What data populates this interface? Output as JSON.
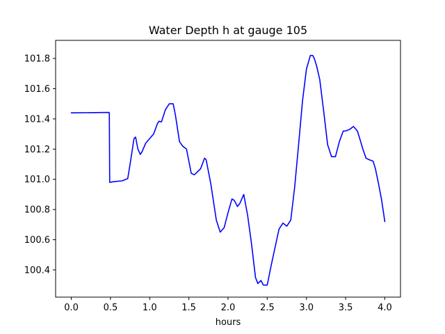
{
  "chart_data": {
    "type": "line",
    "title": "Water Depth h at gauge 105",
    "xlabel": "hours",
    "ylabel": "",
    "xlim": [
      -0.2,
      4.2
    ],
    "ylim": [
      100.22,
      101.92
    ],
    "xticks": [
      0.0,
      0.5,
      1.0,
      1.5,
      2.0,
      2.5,
      3.0,
      3.5,
      4.0
    ],
    "xtick_labels": [
      "0.0",
      "0.5",
      "1.0",
      "1.5",
      "2.0",
      "2.5",
      "3.0",
      "3.5",
      "4.0"
    ],
    "yticks": [
      100.4,
      100.6,
      100.8,
      101.0,
      101.2,
      101.4,
      101.6,
      101.8
    ],
    "ytick_labels": [
      "100.4",
      "100.6",
      "100.8",
      "101.0",
      "101.2",
      "101.4",
      "101.6",
      "101.8"
    ],
    "grid": false,
    "series": [
      {
        "name": "h",
        "color": "#0000ff",
        "x": [
          0.0,
          0.48,
          0.485,
          0.49,
          0.55,
          0.65,
          0.72,
          0.75,
          0.8,
          0.82,
          0.85,
          0.88,
          0.9,
          0.95,
          1.0,
          1.05,
          1.1,
          1.12,
          1.15,
          1.2,
          1.25,
          1.3,
          1.33,
          1.38,
          1.42,
          1.47,
          1.5,
          1.53,
          1.57,
          1.6,
          1.65,
          1.7,
          1.72,
          1.78,
          1.85,
          1.9,
          1.95,
          2.0,
          2.05,
          2.08,
          2.12,
          2.15,
          2.2,
          2.25,
          2.3,
          2.35,
          2.38,
          2.42,
          2.45,
          2.5,
          2.55,
          2.6,
          2.65,
          2.7,
          2.75,
          2.8,
          2.85,
          2.9,
          2.95,
          3.0,
          3.05,
          3.08,
          3.1,
          3.13,
          3.17,
          3.22,
          3.27,
          3.32,
          3.37,
          3.42,
          3.47,
          3.5,
          3.55,
          3.6,
          3.65,
          3.68,
          3.72,
          3.76,
          3.8,
          3.85,
          3.88,
          3.92,
          3.96,
          4.0
        ],
        "y": [
          101.44,
          101.443,
          101.44,
          100.98,
          100.985,
          100.99,
          101.005,
          101.1,
          101.27,
          101.28,
          101.2,
          101.165,
          101.18,
          101.24,
          101.27,
          101.3,
          101.37,
          101.385,
          101.38,
          101.46,
          101.5,
          101.5,
          101.42,
          101.25,
          101.22,
          101.2,
          101.12,
          101.04,
          101.03,
          101.045,
          101.07,
          101.14,
          101.13,
          100.97,
          100.73,
          100.65,
          100.68,
          100.78,
          100.87,
          100.86,
          100.82,
          100.84,
          100.9,
          100.76,
          100.57,
          100.35,
          100.31,
          100.33,
          100.3,
          100.3,
          100.43,
          100.55,
          100.67,
          100.71,
          100.69,
          100.73,
          100.95,
          101.23,
          101.52,
          101.73,
          101.82,
          101.82,
          101.8,
          101.75,
          101.66,
          101.45,
          101.23,
          101.15,
          101.15,
          101.25,
          101.32,
          101.32,
          101.33,
          101.35,
          101.32,
          101.27,
          101.2,
          101.14,
          101.13,
          101.12,
          101.07,
          100.97,
          100.86,
          100.72
        ]
      }
    ]
  }
}
